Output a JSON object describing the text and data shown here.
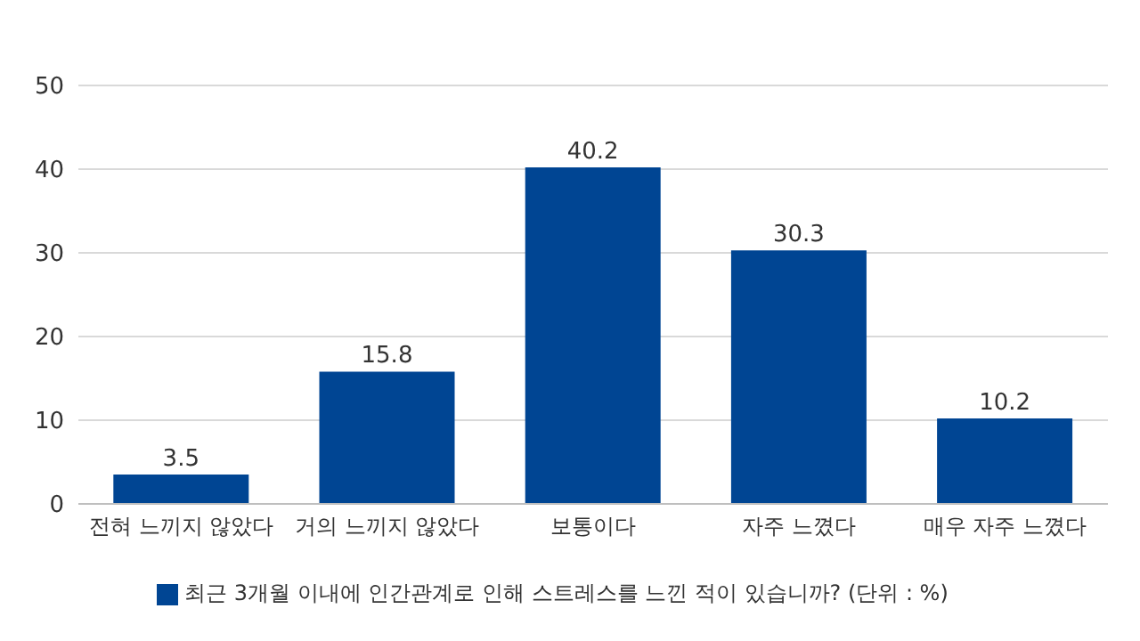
{
  "chart_data": {
    "type": "bar",
    "categories": [
      "전혀 느끼지 않았다",
      "거의 느끼지 않았다",
      "보통이다",
      "자주 느꼈다",
      "매우 자주 느꼈다"
    ],
    "series": [
      {
        "name": "최근 3개월 이내에 인간관계로 인해 스트레스를 느낀 적이 있습니까? (단위 : %)",
        "color": "#004593",
        "values": [
          3.5,
          15.8,
          40.2,
          30.3,
          10.2
        ]
      }
    ],
    "ylim": [
      0,
      50
    ],
    "yticks": [
      0,
      10,
      20,
      30,
      40,
      50
    ],
    "grid": "y",
    "legend": "bottom",
    "data_labels": true
  }
}
